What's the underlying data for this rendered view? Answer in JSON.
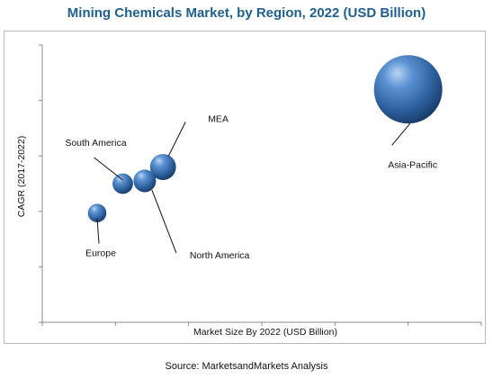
{
  "chart_data": {
    "type": "bubble",
    "title": "Mining Chemicals Market, by Region, 2022 (USD Billion)",
    "xlabel": "Market Size By 2022 (USD Billion)",
    "ylabel": "CAGR (2017-2022)",
    "source": "Source: MarketsandMarkets Analysis",
    "xlim": [
      0,
      6
    ],
    "ylim": [
      0,
      5
    ],
    "grid": false,
    "series": [
      {
        "label": "Asia-Pacific",
        "x": 5.0,
        "y": 4.2,
        "size": 1.0
      },
      {
        "label": "MEA",
        "x": 1.65,
        "y": 2.8,
        "size": 0.38
      },
      {
        "label": "North America",
        "x": 1.4,
        "y": 2.55,
        "size": 0.33
      },
      {
        "label": "South America",
        "x": 1.1,
        "y": 2.5,
        "size": 0.3
      },
      {
        "label": "Europe",
        "x": 0.75,
        "y": 1.97,
        "size": 0.27
      }
    ],
    "bubble_color": "#3f73b3"
  }
}
